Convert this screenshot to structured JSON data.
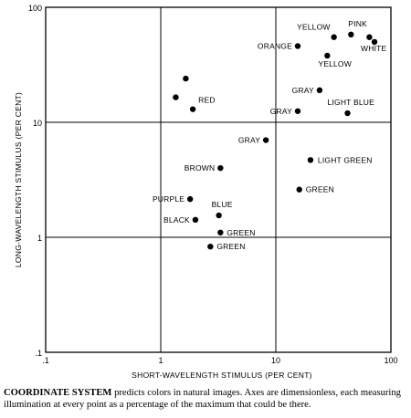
{
  "chart_data": {
    "type": "scatter",
    "xlabel": "SHORT-WAVELENGTH STIMULUS (PER CENT)",
    "ylabel": "LONG-WAVELENGTH STIMULUS (PER CENT)",
    "xscale": "log",
    "yscale": "log",
    "xlim": [
      0.1,
      100
    ],
    "ylim": [
      0.1,
      100
    ],
    "xticks": [
      ".1",
      "1",
      "10",
      "100"
    ],
    "yticks": [
      ".1",
      "1",
      "10",
      "100"
    ],
    "grid": true,
    "points": [
      {
        "x": 1.65,
        "y": 24,
        "label": ""
      },
      {
        "x": 1.35,
        "y": 16.5,
        "label": ""
      },
      {
        "x": 1.9,
        "y": 13,
        "label": "RED"
      },
      {
        "x": 32,
        "y": 55,
        "label": "YELLOW"
      },
      {
        "x": 45,
        "y": 58,
        "label": "PINK"
      },
      {
        "x": 65,
        "y": 55,
        "label": ""
      },
      {
        "x": 72,
        "y": 50,
        "label": "WHITE"
      },
      {
        "x": 15.5,
        "y": 46,
        "label": "ORANGE"
      },
      {
        "x": 28,
        "y": 38,
        "label": "YELLOW"
      },
      {
        "x": 24,
        "y": 19,
        "label": "GRAY"
      },
      {
        "x": 15.5,
        "y": 12.5,
        "label": "GRAY"
      },
      {
        "x": 42,
        "y": 12,
        "label": "LIGHT BLUE"
      },
      {
        "x": 8.2,
        "y": 7,
        "label": "GRAY"
      },
      {
        "x": 20,
        "y": 4.7,
        "label": "LIGHT GREEN"
      },
      {
        "x": 3.3,
        "y": 4,
        "label": "BROWN"
      },
      {
        "x": 16,
        "y": 2.6,
        "label": "GREEN"
      },
      {
        "x": 1.8,
        "y": 2.15,
        "label": "PURPLE"
      },
      {
        "x": 3.2,
        "y": 1.55,
        "label": "BLUE"
      },
      {
        "x": 2.0,
        "y": 1.42,
        "label": "BLACK"
      },
      {
        "x": 3.3,
        "y": 1.1,
        "label": "GREEN"
      },
      {
        "x": 2.7,
        "y": 0.83,
        "label": "GREEN"
      }
    ]
  },
  "caption": {
    "head": "COORDINATE SYSTEM",
    "body": " predicts colors in natural images. Axes are dimensionless, each measuring illumination at every point as a percentage of the maximum that could be there."
  }
}
